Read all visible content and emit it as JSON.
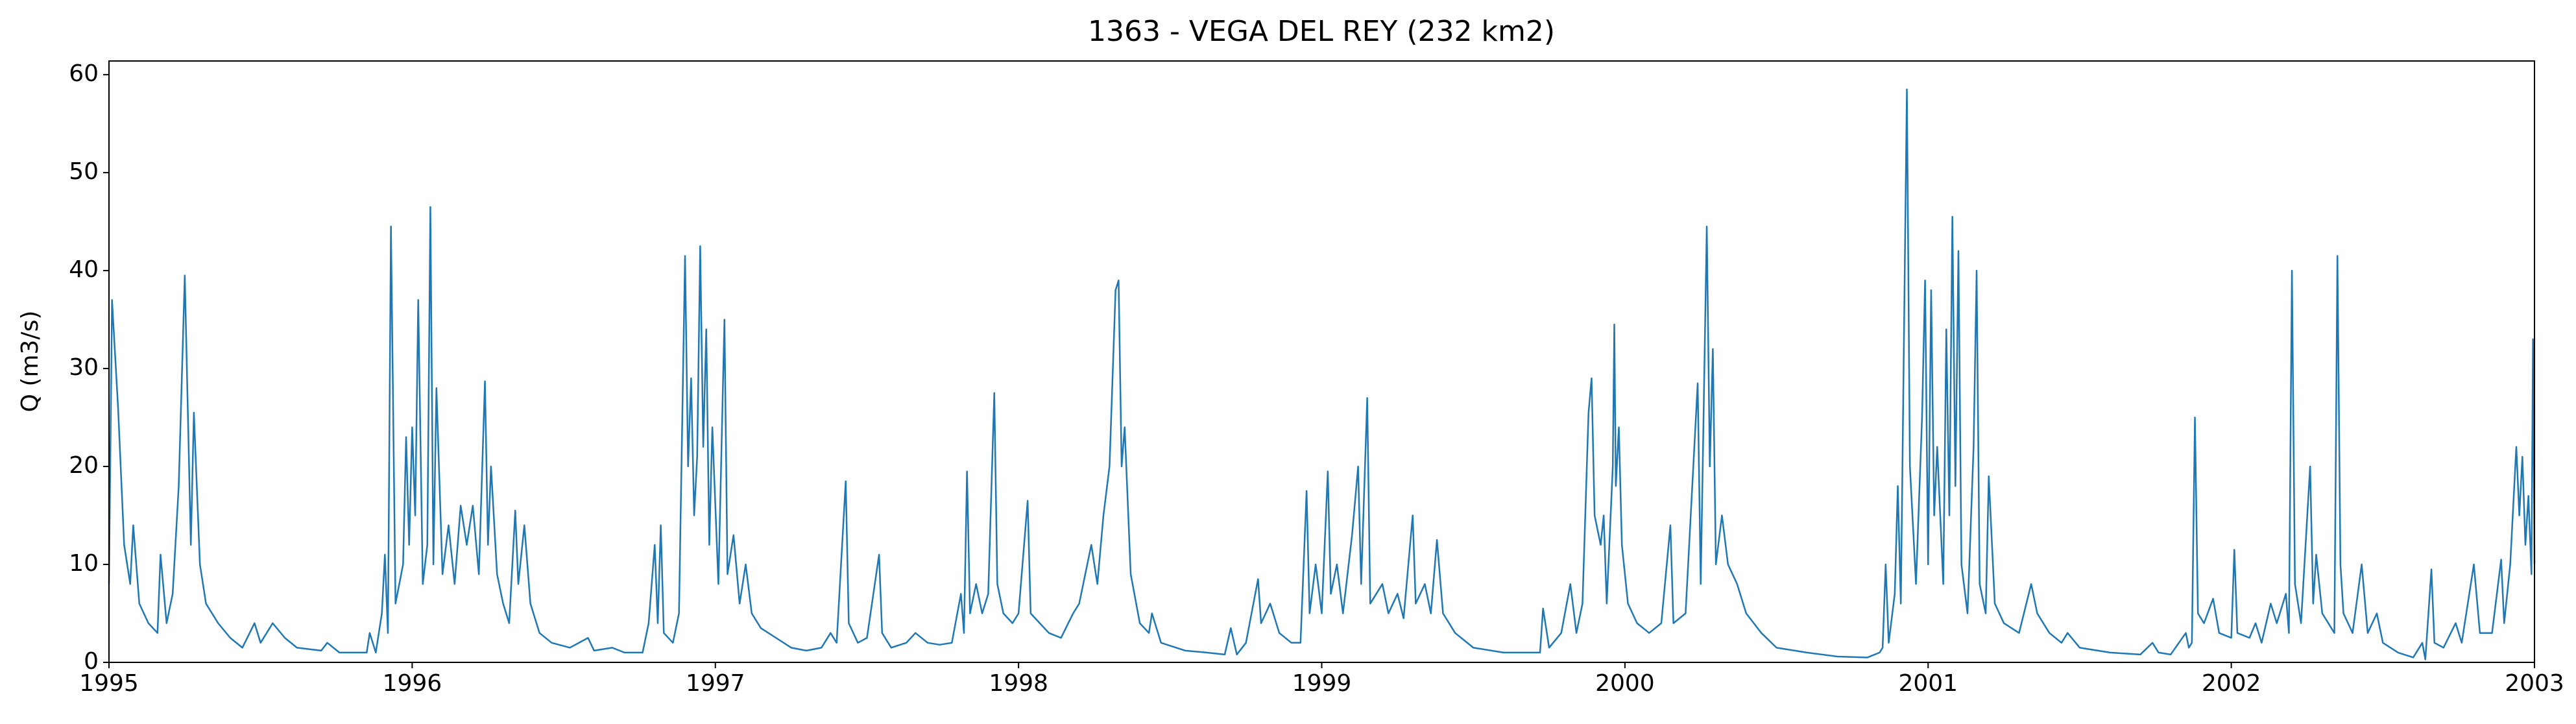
{
  "chart_data": {
    "type": "line",
    "title": "1363 - VEGA DEL REY (232 km2)",
    "y_label": "Q (m3/s)",
    "x": [
      1995.0,
      1995.01,
      1995.03,
      1995.05,
      1995.07,
      1995.08,
      1995.1,
      1995.13,
      1995.16,
      1995.17,
      1995.19,
      1995.21,
      1995.23,
      1995.25,
      1995.27,
      1995.28,
      1995.3,
      1995.32,
      1995.36,
      1995.4,
      1995.44,
      1995.48,
      1995.5,
      1995.54,
      1995.58,
      1995.62,
      1995.7,
      1995.72,
      1995.76,
      1995.85,
      1995.86,
      1995.88,
      1995.9,
      1995.91,
      1995.92,
      1995.93,
      1995.945,
      1995.97,
      1995.98,
      1995.99,
      1996.0,
      1996.01,
      1996.02,
      1996.035,
      1996.05,
      1996.06,
      1996.07,
      1996.08,
      1996.1,
      1996.12,
      1996.14,
      1996.16,
      1996.18,
      1996.2,
      1996.22,
      1996.24,
      1996.25,
      1996.26,
      1996.28,
      1996.3,
      1996.32,
      1996.34,
      1996.35,
      1996.37,
      1996.39,
      1996.42,
      1996.46,
      1996.52,
      1996.58,
      1996.6,
      1996.66,
      1996.7,
      1996.76,
      1996.78,
      1996.8,
      1996.81,
      1996.82,
      1996.83,
      1996.86,
      1996.88,
      1996.9,
      1996.91,
      1996.92,
      1996.93,
      1996.94,
      1996.95,
      1996.96,
      1996.97,
      1996.98,
      1996.99,
      1997.01,
      1997.03,
      1997.04,
      1997.06,
      1997.08,
      1997.1,
      1997.12,
      1997.15,
      1997.2,
      1997.25,
      1997.3,
      1997.35,
      1997.38,
      1997.4,
      1997.43,
      1997.44,
      1997.47,
      1997.5,
      1997.54,
      1997.55,
      1997.58,
      1997.63,
      1997.66,
      1997.7,
      1997.74,
      1997.78,
      1997.81,
      1997.82,
      1997.83,
      1997.84,
      1997.86,
      1997.88,
      1997.9,
      1997.92,
      1997.93,
      1997.95,
      1997.98,
      1998.0,
      1998.03,
      1998.04,
      1998.07,
      1998.1,
      1998.14,
      1998.18,
      1998.2,
      1998.24,
      1998.26,
      1998.28,
      1998.3,
      1998.32,
      1998.33,
      1998.34,
      1998.35,
      1998.37,
      1998.4,
      1998.43,
      1998.44,
      1998.47,
      1998.55,
      1998.62,
      1998.68,
      1998.7,
      1998.72,
      1998.75,
      1998.79,
      1998.8,
      1998.83,
      1998.86,
      1998.9,
      1998.93,
      1998.95,
      1998.96,
      1998.98,
      1999.0,
      1999.02,
      1999.03,
      1999.05,
      1999.07,
      1999.1,
      1999.12,
      1999.13,
      1999.15,
      1999.16,
      1999.2,
      1999.22,
      1999.25,
      1999.27,
      1999.3,
      1999.31,
      1999.34,
      1999.36,
      1999.38,
      1999.4,
      1999.44,
      1999.5,
      1999.6,
      1999.72,
      1999.73,
      1999.75,
      1999.79,
      1999.82,
      1999.84,
      1999.86,
      1999.88,
      1999.89,
      1999.9,
      1999.92,
      1999.93,
      1999.94,
      1999.96,
      1999.965,
      1999.97,
      1999.98,
      1999.99,
      2000.01,
      2000.04,
      2000.08,
      2000.12,
      2000.15,
      2000.16,
      2000.2,
      2000.24,
      2000.25,
      2000.27,
      2000.28,
      2000.29,
      2000.3,
      2000.32,
      2000.34,
      2000.37,
      2000.4,
      2000.45,
      2000.5,
      2000.6,
      2000.7,
      2000.8,
      2000.84,
      2000.85,
      2000.86,
      2000.87,
      2000.89,
      2000.9,
      2000.91,
      2000.93,
      2000.94,
      2000.96,
      2000.98,
      2000.99,
      2001.0,
      2001.01,
      2001.02,
      2001.03,
      2001.05,
      2001.06,
      2001.07,
      2001.08,
      2001.09,
      2001.1,
      2001.11,
      2001.13,
      2001.15,
      2001.16,
      2001.17,
      2001.19,
      2001.2,
      2001.22,
      2001.25,
      2001.3,
      2001.34,
      2001.36,
      2001.4,
      2001.44,
      2001.46,
      2001.5,
      2001.6,
      2001.7,
      2001.74,
      2001.76,
      2001.8,
      2001.85,
      2001.86,
      2001.87,
      2001.88,
      2001.89,
      2001.91,
      2001.94,
      2001.96,
      2002.0,
      2002.01,
      2002.02,
      2002.06,
      2002.08,
      2002.1,
      2002.13,
      2002.15,
      2002.18,
      2002.19,
      2002.2,
      2002.21,
      2002.23,
      2002.26,
      2002.27,
      2002.28,
      2002.3,
      2002.34,
      2002.35,
      2002.36,
      2002.37,
      2002.4,
      2002.43,
      2002.45,
      2002.48,
      2002.5,
      2002.55,
      2002.6,
      2002.63,
      2002.64,
      2002.66,
      2002.67,
      2002.7,
      2002.74,
      2002.76,
      2002.8,
      2002.82,
      2002.86,
      2002.89,
      2002.9,
      2002.92,
      2002.94,
      2002.95,
      2002.96,
      2002.97,
      2002.98,
      2002.99,
      2002.995,
      2003.0
    ],
    "series": [
      {
        "name": "Q",
        "color": "#1f77b4",
        "values": [
          8,
          37,
          26,
          12,
          8,
          14,
          6,
          4,
          3,
          11,
          4,
          7,
          18,
          39.5,
          12,
          25.5,
          10,
          6,
          4,
          2.5,
          1.5,
          4,
          2,
          4,
          2.5,
          1.5,
          1.2,
          2,
          1,
          1,
          3,
          1,
          5,
          11,
          3,
          44.5,
          6,
          10,
          23,
          12,
          24,
          15,
          37,
          8,
          12,
          46.5,
          10,
          28,
          9,
          14,
          8,
          16,
          12,
          16,
          9,
          28.7,
          12,
          20,
          9,
          6,
          4,
          15.5,
          8,
          14,
          6,
          3,
          2,
          1.5,
          2.5,
          1.2,
          1.5,
          1,
          1,
          4,
          12,
          4,
          14,
          3,
          2,
          5,
          41.5,
          20,
          29,
          15,
          21,
          42.5,
          22,
          34,
          12,
          24,
          8,
          35,
          9,
          13,
          6,
          10,
          5,
          3.5,
          2.5,
          1.5,
          1.2,
          1.5,
          3,
          2,
          18.5,
          4,
          2,
          2.5,
          11,
          3,
          1.5,
          2,
          3,
          2,
          1.8,
          2,
          7,
          3,
          19.5,
          5,
          8,
          5,
          7,
          27.5,
          8,
          5,
          4,
          5,
          16.5,
          5,
          4,
          3,
          2.5,
          5,
          6,
          12,
          8,
          15,
          20,
          38,
          39,
          20,
          24,
          9,
          4,
          3,
          5,
          2,
          1.2,
          1,
          0.8,
          3.5,
          0.8,
          2,
          8.5,
          4,
          6,
          3,
          2,
          2,
          17.5,
          5,
          10,
          5,
          19.5,
          7,
          10,
          5,
          13,
          20,
          8,
          27,
          6,
          8,
          5,
          7,
          4.5,
          15,
          6,
          8,
          5,
          12.5,
          5,
          3,
          1.5,
          1,
          1,
          5.5,
          1.5,
          3,
          8,
          3,
          6,
          25.5,
          29,
          15,
          12,
          15,
          6,
          20,
          34.5,
          18,
          24,
          12,
          6,
          4,
          3,
          4,
          14,
          4,
          5,
          28.5,
          8,
          44.5,
          20,
          32,
          10,
          15,
          10,
          8,
          5,
          3,
          1.5,
          1,
          0.6,
          0.5,
          1,
          1.5,
          10,
          2,
          7,
          18,
          6,
          58.5,
          20,
          8,
          25,
          39,
          10,
          38,
          15,
          22,
          8,
          34,
          15,
          45.5,
          18,
          42,
          10,
          5,
          22,
          40,
          8,
          5,
          19,
          6,
          4,
          3,
          8,
          5,
          3,
          2,
          3,
          1.5,
          1,
          0.8,
          2,
          1,
          0.8,
          3,
          1.5,
          2,
          25,
          5,
          4,
          6.5,
          3,
          2.5,
          11.5,
          3,
          2.5,
          4,
          2,
          6,
          4,
          7,
          3,
          40,
          8,
          4,
          20,
          6,
          11,
          5,
          3,
          41.5,
          10,
          5,
          3,
          10,
          3,
          5,
          2,
          1,
          0.5,
          2,
          0.3,
          9.5,
          2,
          1.5,
          4,
          2,
          10,
          3,
          3,
          10.5,
          4,
          10,
          22,
          15,
          21,
          12,
          17,
          9,
          33,
          10
        ]
      }
    ],
    "xlim": [
      1995,
      2003
    ],
    "xticks": [
      1995,
      1996,
      1997,
      1998,
      1999,
      2000,
      2001,
      2002,
      2003
    ],
    "ylim": [
      0,
      61.4
    ],
    "yticks": [
      0,
      10,
      20,
      30,
      40,
      50,
      60
    ],
    "grid": false
  }
}
